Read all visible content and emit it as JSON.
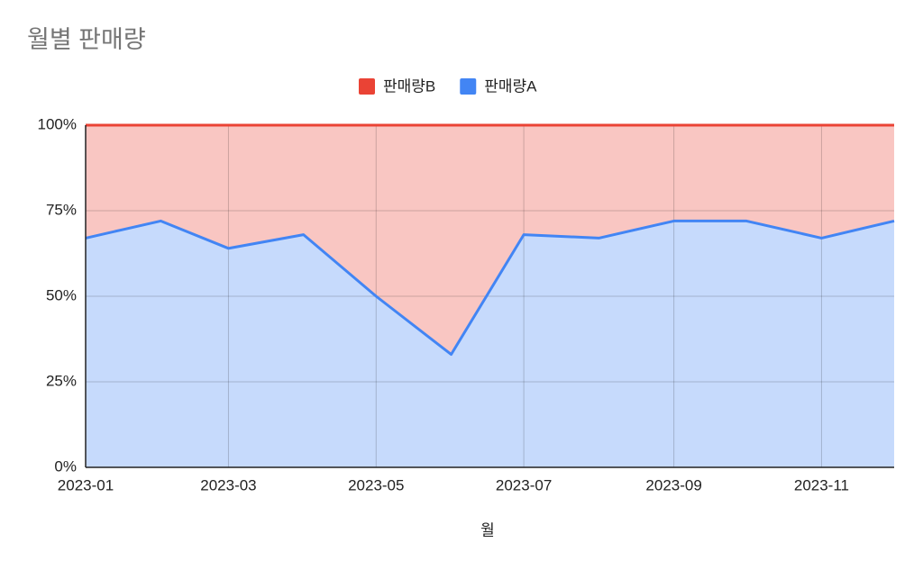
{
  "chart_data": {
    "type": "stacked-area-percent",
    "title": "월별 판매량",
    "x_label": "월",
    "x": [
      "2023-01",
      "2023-02",
      "2023-03",
      "2023-04",
      "2023-05",
      "2023-06",
      "2023-07",
      "2023-08",
      "2023-09",
      "2023-10",
      "2023-11",
      "2023-12"
    ],
    "xticks": [
      "2023-01",
      "2023-03",
      "2023-05",
      "2023-07",
      "2023-09",
      "2023-11"
    ],
    "series": [
      {
        "name": "판매량A",
        "color": "#4285f4",
        "values": [
          67,
          72,
          64,
          68,
          50,
          33,
          68,
          67,
          72,
          72,
          67,
          72
        ]
      },
      {
        "name": "판매량B",
        "color": "#ea4335",
        "values": [
          33,
          28,
          36,
          32,
          50,
          67,
          32,
          33,
          28,
          28,
          33,
          28
        ]
      }
    ],
    "ylim": [
      0,
      100
    ],
    "yticks": [
      {
        "value": 0,
        "label": "0%"
      },
      {
        "value": 25,
        "label": "25%"
      },
      {
        "value": 50,
        "label": "50%"
      },
      {
        "value": 75,
        "label": "75%"
      },
      {
        "value": 100,
        "label": "100%"
      }
    ],
    "grid": true,
    "legend": "top"
  }
}
